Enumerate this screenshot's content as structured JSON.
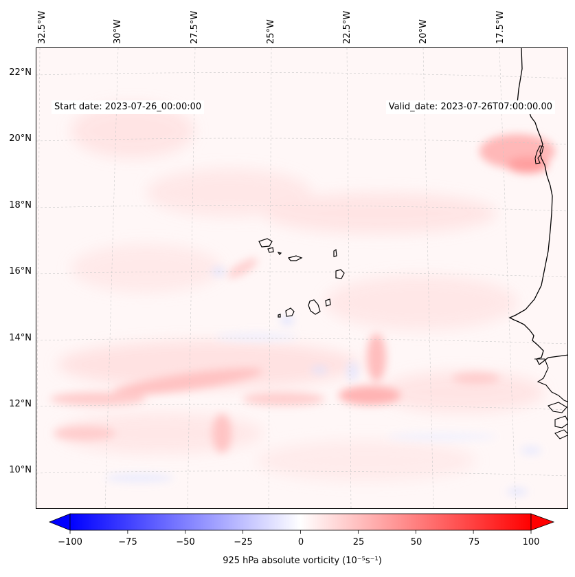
{
  "map": {
    "start_date": "Start date: 2023-07-26_00:00:00",
    "valid_date": "Valid_date: 2023-07-26T07:00:00.00",
    "longitude_labels": [
      "32.5°W",
      "30°W",
      "27.5°W",
      "25°W",
      "22.5°W",
      "20°W",
      "17.5°W"
    ],
    "latitude_labels": [
      "22°N",
      "20°N",
      "18°N",
      "16°N",
      "14°N",
      "12°N",
      "10°N"
    ],
    "colors": {
      "background": "#fff7f7",
      "negative": "#0000ff",
      "neutral": "#ffffff",
      "positive": "#ff0000",
      "coastline": "#000000"
    }
  },
  "colorbar": {
    "ticks": [
      "−100",
      "−75",
      "−50",
      "−25",
      "0",
      "25",
      "50",
      "75",
      "100"
    ],
    "min": -100,
    "max": 100,
    "label": "925 hPa absolute vorticity (10⁻⁵s⁻¹)"
  }
}
